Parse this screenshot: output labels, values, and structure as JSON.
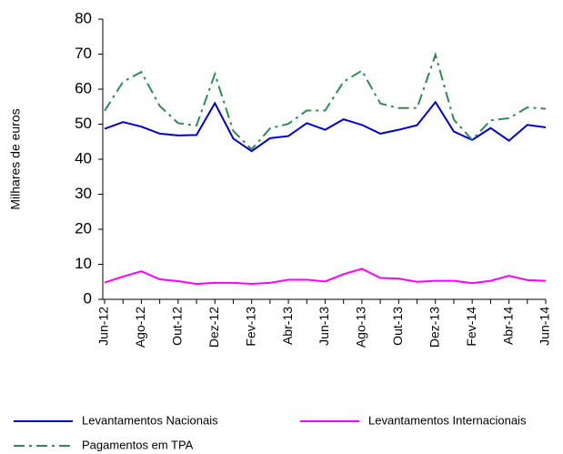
{
  "chart_data": {
    "type": "line",
    "y_label": "Milhares de euros",
    "categories": [
      "Jun-12",
      null,
      "Ago-12",
      null,
      "Out-12",
      null,
      "Dez-12",
      null,
      "Fev-13",
      null,
      "Abr-13",
      null,
      "Jun-13",
      null,
      "Ago-13",
      null,
      "Out-13",
      null,
      "Dez-13",
      null,
      "Fev-14",
      null,
      "Abr-14",
      null,
      "Jun-14"
    ],
    "series": [
      {
        "name": "Levantamentos Nacionais",
        "color": "#0000cc",
        "dash": "solid",
        "values": [
          48.7,
          50.6,
          49.3,
          47.3,
          46.8,
          46.9,
          56,
          45.9,
          42.3,
          46,
          46.6,
          50.3,
          48.4,
          51.4,
          49.8,
          47.3,
          48.4,
          49.7,
          56.3,
          47.9,
          45.5,
          48.9,
          45.3,
          49.8,
          49.1
        ]
      },
      {
        "name": "Levantamentos Internacionais",
        "color": "#ff00ff",
        "dash": "solid",
        "values": [
          4.8,
          6.5,
          8,
          5.7,
          5.2,
          4.4,
          4.7,
          4.7,
          4.4,
          4.7,
          5.6,
          5.6,
          5.1,
          7.2,
          8.7,
          6.1,
          5.9,
          5,
          5.3,
          5.3,
          4.6,
          5.3,
          6.7,
          5.5,
          5.3
        ]
      },
      {
        "name": "Pagamentos em TPA",
        "color": "#2e8b57",
        "dash": "dashdot",
        "values": [
          53.8,
          62.1,
          64.9,
          55.2,
          50.3,
          49.6,
          64.3,
          48.1,
          42.8,
          48.8,
          50.1,
          53.9,
          53.9,
          62.1,
          65.3,
          55.9,
          54.6,
          54.6,
          69.8,
          51.3,
          45.5,
          51.1,
          51.7,
          54.8,
          54.4
        ]
      }
    ],
    "ylim": [
      0,
      80
    ],
    "yticks": [
      0,
      10,
      20,
      30,
      40,
      50,
      60,
      70,
      80
    ],
    "grid": false
  }
}
